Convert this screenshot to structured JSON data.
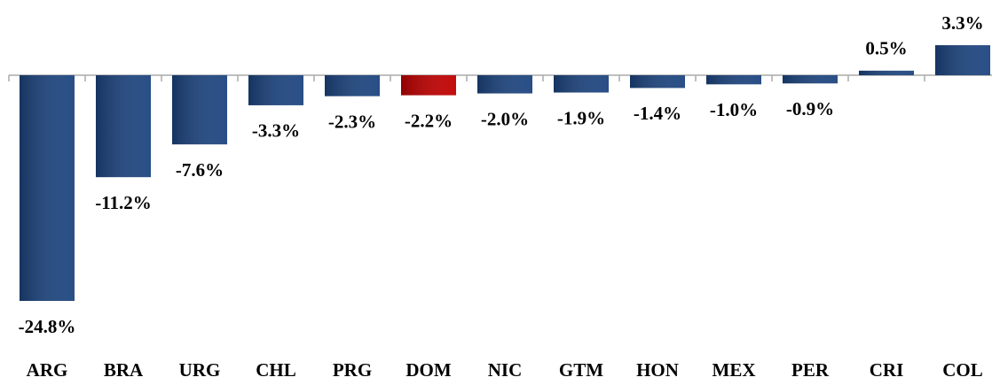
{
  "chart_data": {
    "type": "bar",
    "categories": [
      "ARG",
      "BRA",
      "URG",
      "CHL",
      "PRG",
      "DOM",
      "NIC",
      "GTM",
      "HON",
      "MEX",
      "PER",
      "CRI",
      "COL"
    ],
    "values": [
      -24.8,
      -11.2,
      -7.6,
      -3.3,
      -2.3,
      -2.2,
      -2.0,
      -1.9,
      -1.4,
      -1.0,
      -0.9,
      0.5,
      3.3
    ],
    "value_labels": [
      "-24.8%",
      "-11.2%",
      "-7.6%",
      "-3.3%",
      "-2.3%",
      "-2.2%",
      "-2.0%",
      "-1.9%",
      "-1.4%",
      "-1.0%",
      "-0.9%",
      "0.5%",
      "3.3%"
    ],
    "colors": [
      "#1d4580",
      "#1d4580",
      "#1d4580",
      "#1d4580",
      "#1d4580",
      "#c00000",
      "#1d4580",
      "#1d4580",
      "#1d4580",
      "#1d4580",
      "#1d4580",
      "#1d4580",
      "#1d4580"
    ]
  }
}
